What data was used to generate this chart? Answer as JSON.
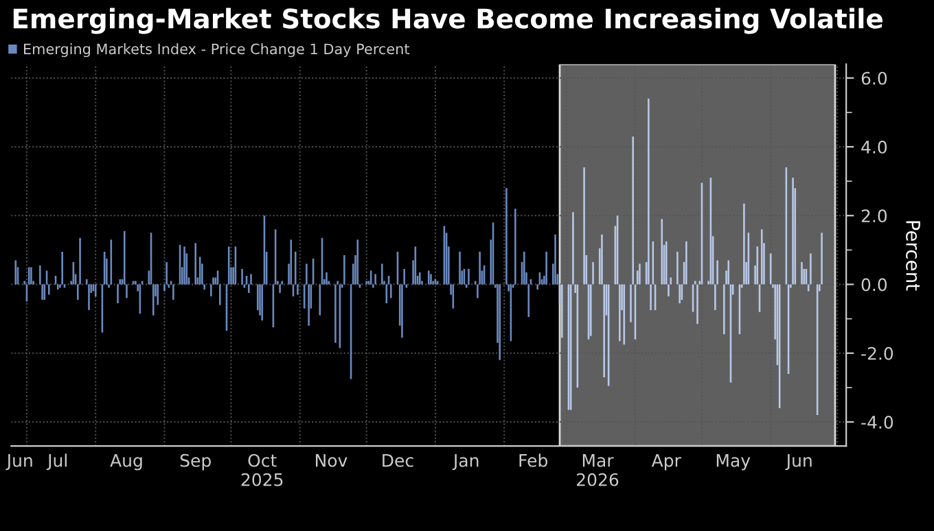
{
  "chart_data": {
    "type": "bar",
    "title": "Emerging-Market Stocks Have Become Increasing Volatile",
    "ylabel": "Percent",
    "series": [
      {
        "name": "Emerging Markets Index - Price Change 1 Day Percent",
        "color": "#6a8ac0",
        "x": [
          "2025-06-26",
          "2025-06-27",
          "2025-06-30",
          "2025-07-01",
          "2025-07-02",
          "2025-07-03",
          "2025-07-04",
          "2025-07-07",
          "2025-07-08",
          "2025-07-09",
          "2025-07-10",
          "2025-07-11",
          "2025-07-14",
          "2025-07-15",
          "2025-07-16",
          "2025-07-17",
          "2025-07-18",
          "2025-07-21",
          "2025-07-22",
          "2025-07-23",
          "2025-07-24",
          "2025-07-25",
          "2025-07-28",
          "2025-07-29",
          "2025-07-30",
          "2025-07-31",
          "2025-08-01",
          "2025-08-04",
          "2025-08-05",
          "2025-08-06",
          "2025-08-07",
          "2025-08-08",
          "2025-08-11",
          "2025-08-12",
          "2025-08-13",
          "2025-08-14",
          "2025-08-15",
          "2025-08-18",
          "2025-08-19",
          "2025-08-20",
          "2025-08-21",
          "2025-08-22",
          "2025-08-25",
          "2025-08-26",
          "2025-08-27",
          "2025-08-28",
          "2025-08-29",
          "2025-09-01",
          "2025-09-02",
          "2025-09-03",
          "2025-09-04",
          "2025-09-05",
          "2025-09-08",
          "2025-09-09",
          "2025-09-10",
          "2025-09-11",
          "2025-09-12",
          "2025-09-15",
          "2025-09-16",
          "2025-09-17",
          "2025-09-18",
          "2025-09-19",
          "2025-09-22",
          "2025-09-23",
          "2025-09-24",
          "2025-09-25",
          "2025-09-26",
          "2025-09-29",
          "2025-09-30",
          "2025-10-01",
          "2025-10-02",
          "2025-10-03",
          "2025-10-06",
          "2025-10-07",
          "2025-10-08",
          "2025-10-09",
          "2025-10-10",
          "2025-10-13",
          "2025-10-14",
          "2025-10-15",
          "2025-10-16",
          "2025-10-17",
          "2025-10-20",
          "2025-10-21",
          "2025-10-22",
          "2025-10-23",
          "2025-10-24",
          "2025-10-27",
          "2025-10-28",
          "2025-10-29",
          "2025-10-30",
          "2025-10-31",
          "2025-11-03",
          "2025-11-04",
          "2025-11-05",
          "2025-11-06",
          "2025-11-07",
          "2025-11-10",
          "2025-11-11",
          "2025-11-12",
          "2025-11-13",
          "2025-11-14",
          "2025-11-17",
          "2025-11-18",
          "2025-11-19",
          "2025-11-20",
          "2025-11-21",
          "2025-11-24",
          "2025-11-25",
          "2025-11-26",
          "2025-11-27",
          "2025-11-28",
          "2025-12-01",
          "2025-12-02",
          "2025-12-03",
          "2025-12-04",
          "2025-12-05",
          "2025-12-08",
          "2025-12-09",
          "2025-12-10",
          "2025-12-11",
          "2025-12-12",
          "2025-12-15",
          "2025-12-16",
          "2025-12-17",
          "2025-12-18",
          "2025-12-19",
          "2025-12-22",
          "2025-12-23",
          "2025-12-24",
          "2025-12-25",
          "2025-12-26",
          "2025-12-29",
          "2025-12-30",
          "2025-12-31",
          "2026-01-01",
          "2026-01-02",
          "2026-01-05",
          "2026-01-06",
          "2026-01-07",
          "2026-01-08",
          "2026-01-09",
          "2026-01-12",
          "2026-01-13",
          "2026-01-14",
          "2026-01-15",
          "2026-01-16",
          "2026-01-19",
          "2026-01-20",
          "2026-01-21",
          "2026-01-22",
          "2026-01-23",
          "2026-01-26",
          "2026-01-27",
          "2026-01-28",
          "2026-01-29",
          "2026-01-30",
          "2026-02-02",
          "2026-02-03",
          "2026-02-04",
          "2026-02-05",
          "2026-02-06",
          "2026-02-09",
          "2026-02-10",
          "2026-02-11",
          "2026-02-12",
          "2026-02-13",
          "2026-02-16",
          "2026-02-17",
          "2026-02-18",
          "2026-02-19",
          "2026-02-20",
          "2026-02-23",
          "2026-02-24",
          "2026-02-25"
        ],
        "values": [
          0.7,
          0.5,
          0.1,
          -0.5,
          0.5,
          0.5,
          0.1,
          0.55,
          -0.45,
          -0.45,
          0.4,
          -0.3,
          0.25,
          -0.15,
          -0.1,
          0.95,
          -0.1,
          0.1,
          0.65,
          0.3,
          -0.45,
          1.35,
          0.15,
          -0.75,
          -0.25,
          -0.2,
          -0.35,
          -1.4,
          0.95,
          0.75,
          -0.1,
          1.3,
          -0.55,
          0.15,
          0.15,
          1.55,
          -0.4,
          0.1,
          0.1,
          -0.2,
          -0.85,
          0.1,
          0.4,
          1.5,
          -0.9,
          -0.35,
          -0.6,
          -0.2,
          0.65,
          -0.1,
          0.1,
          -0.45,
          1.15,
          0.5,
          1.1,
          0.9,
          0.2,
          1.2,
          0.2,
          0.8,
          0.6,
          -0.15,
          -0.35,
          0.2,
          0.2,
          0.4,
          -0.6,
          -1.35,
          1.1,
          0.5,
          0.5,
          1.1,
          0.45,
          -0.1,
          0.25,
          -0.25,
          0.3,
          -0.75,
          -0.9,
          -1.05,
          2.0,
          0.95,
          -1.25,
          1.6,
          0.1,
          -0.25,
          0.1,
          0.6,
          1.3,
          -0.35,
          0.95,
          -0.3,
          -0.7,
          0.6,
          -1.2,
          -0.7,
          0.75,
          -0.9,
          1.35,
          0.15,
          0.35,
          0.1,
          -1.7,
          0.1,
          -1.85,
          -0.1,
          0.85,
          -2.75,
          0.6,
          0.85,
          1.3,
          -0.1,
          0.1,
          0.1,
          0.4,
          -0.1,
          0.3,
          0.6,
          0.1,
          -0.55,
          0.25,
          -0.4,
          0.95,
          -1.2,
          -1.55,
          0.45,
          -0.1,
          0.7,
          1.1,
          0.25,
          0.35,
          0.1,
          0.4,
          0.3,
          0.1,
          0.15,
          0.1,
          1.7,
          1.5,
          1.1,
          -0.3,
          -0.7,
          0.95,
          0.4,
          0.45,
          -0.1,
          0.45,
          0.1,
          -0.4,
          0.95,
          0.4,
          0.55,
          1.3,
          1.8,
          -0.1,
          -1.7,
          -2.2,
          2.8,
          -0.2,
          -1.65,
          -0.1,
          2.2,
          0.65,
          0.95,
          0.35,
          -0.95,
          0.15,
          -0.15,
          0.35,
          0.15,
          0.25,
          0.95,
          0.6,
          1.45,
          0.3
        ]
      },
      {
        "color": "#b8c8e8",
        "x": [
          "2026-02-26",
          "2026-02-27",
          "2026-03-02",
          "2026-03-03",
          "2026-03-04",
          "2026-03-05",
          "2026-03-06",
          "2026-03-09",
          "2026-03-10",
          "2026-03-11",
          "2026-03-12",
          "2026-03-13",
          "2026-03-16",
          "2026-03-17",
          "2026-03-18",
          "2026-03-19",
          "2026-03-20",
          "2026-03-23",
          "2026-03-24",
          "2026-03-25",
          "2026-03-26",
          "2026-03-27",
          "2026-03-30",
          "2026-03-31",
          "2026-04-01",
          "2026-04-02",
          "2026-04-03",
          "2026-04-06",
          "2026-04-07",
          "2026-04-08",
          "2026-04-09",
          "2026-04-10",
          "2026-04-13",
          "2026-04-14",
          "2026-04-15",
          "2026-04-16",
          "2026-04-17",
          "2026-04-20",
          "2026-04-21",
          "2026-04-22",
          "2026-04-23",
          "2026-04-24",
          "2026-04-27",
          "2026-04-28",
          "2026-04-29",
          "2026-04-30",
          "2026-05-01",
          "2026-05-04",
          "2026-05-05",
          "2026-05-06",
          "2026-05-07",
          "2026-05-08",
          "2026-05-11",
          "2026-05-12",
          "2026-05-13",
          "2026-05-14",
          "2026-05-15",
          "2026-05-18",
          "2026-05-19",
          "2026-05-20",
          "2026-05-21",
          "2026-05-22",
          "2026-05-25",
          "2026-05-26",
          "2026-05-27",
          "2026-05-28",
          "2026-05-29",
          "2026-06-01",
          "2026-06-02",
          "2026-06-03",
          "2026-06-04",
          "2026-06-05",
          "2026-06-08",
          "2026-06-09",
          "2026-06-10",
          "2026-06-11",
          "2026-06-12",
          "2026-06-15",
          "2026-06-16",
          "2026-06-17",
          "2026-06-18",
          "2026-06-19",
          "2026-06-22",
          "2026-06-23",
          "2026-06-24"
        ],
        "values": [
          -0.55,
          -1.55,
          -3.65,
          -3.65,
          2.1,
          -0.25,
          -3.0,
          3.4,
          0.85,
          -1.6,
          -1.5,
          0.65,
          1.05,
          1.45,
          -2.7,
          -0.9,
          -2.95,
          1.7,
          2.0,
          -1.65,
          -0.75,
          -1.75,
          -1.1,
          4.3,
          -1.6,
          0.4,
          0.6,
          0.65,
          5.4,
          -0.75,
          1.25,
          -0.75,
          1.9,
          1.15,
          1.25,
          -0.35,
          0.2,
          0.95,
          -0.55,
          -0.45,
          0.65,
          1.25,
          -0.8,
          0.1,
          -1.15,
          0.1,
          2.95,
          0.1,
          3.1,
          1.4,
          -0.75,
          0.7,
          -1.45,
          0.4,
          0.7,
          -2.85,
          -0.3,
          -1.45,
          -0.1,
          2.35,
          0.65,
          1.5,
          0.55,
          1.1,
          -0.8,
          1.6,
          1.2,
          0.9,
          -0.1,
          -1.6,
          -2.35,
          -3.6,
          3.4,
          -2.6,
          -0.1,
          3.1,
          2.8,
          0.65,
          0.45,
          0.45,
          -0.2,
          0.9,
          -3.8,
          -0.2,
          1.5
        ]
      }
    ],
    "xlim": [
      "2025-06-24",
      "2026-07-05"
    ],
    "xticks": [
      {
        "value": "2025-06-28",
        "label": "Jun"
      },
      {
        "value": "2025-07-15",
        "label": "Jul"
      },
      {
        "value": "2025-08-15",
        "label": "Aug"
      },
      {
        "value": "2025-09-15",
        "label": "Sep"
      },
      {
        "value": "2025-10-15",
        "label": "Oct\n2025"
      },
      {
        "value": "2025-11-15",
        "label": "Nov"
      },
      {
        "value": "2025-12-15",
        "label": "Dec"
      },
      {
        "value": "2026-01-15",
        "label": "Jan"
      },
      {
        "value": "2026-02-14",
        "label": "Feb"
      },
      {
        "value": "2026-03-15",
        "label": "Mar\n2026"
      },
      {
        "value": "2026-04-15",
        "label": "Apr"
      },
      {
        "value": "2026-05-15",
        "label": "May"
      },
      {
        "value": "2026-06-14",
        "label": "Jun"
      },
      {
        "value": "2025-07-01",
        "label": null
      },
      {
        "value": "2025-08-01",
        "label": null
      },
      {
        "value": "2025-09-01",
        "label": null
      },
      {
        "value": "2025-10-01",
        "label": null
      },
      {
        "value": "2025-11-01",
        "label": null
      },
      {
        "value": "2025-12-01",
        "label": null
      },
      {
        "value": "2026-01-01",
        "label": null
      },
      {
        "value": "2026-02-01",
        "label": null
      },
      {
        "value": "2026-03-01",
        "label": null
      },
      {
        "value": "2026-04-01",
        "label": null
      },
      {
        "value": "2026-05-01",
        "label": null
      },
      {
        "value": "2026-06-01",
        "label": null
      },
      {
        "value": "2026-07-01",
        "label": null
      }
    ],
    "ylim": [
      -4.7,
      6.4
    ],
    "yticks": [
      {
        "value": -4,
        "label": "-4.0"
      },
      {
        "value": -2,
        "label": "-2.0"
      },
      {
        "value": 0,
        "label": "0.0"
      },
      {
        "value": 2,
        "label": "2.0"
      },
      {
        "value": 4,
        "label": "4.0"
      },
      {
        "value": 6,
        "label": "6.0"
      },
      {
        "value": -3,
        "label": null
      },
      {
        "value": -1,
        "label": null
      },
      {
        "value": 1,
        "label": null
      },
      {
        "value": 3,
        "label": null
      },
      {
        "value": 5,
        "label": null
      }
    ],
    "bands": [
      {
        "axis": "x",
        "from": "2026-02-26",
        "to": "2026-06-30",
        "color": "#5f5f5f"
      }
    ],
    "grid": true,
    "legend": "top left"
  }
}
